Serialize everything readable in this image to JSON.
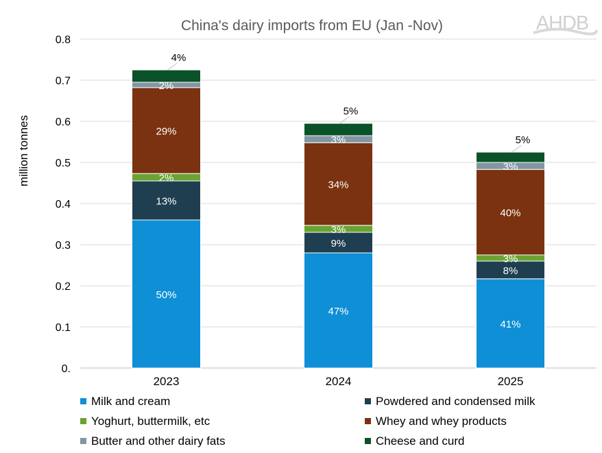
{
  "chart_data": {
    "type": "bar",
    "stacked": true,
    "title": "China's dairy imports from EU (Jan -Nov)",
    "ylabel": "million tonnes",
    "xlabel": "",
    "ylim": [
      0,
      0.8
    ],
    "yticks": [
      "0.",
      "0.1",
      "0.2",
      "0.3",
      "0.4",
      "0.5",
      "0.6",
      "0.7",
      "0.8"
    ],
    "grid": true,
    "legend": "bottom",
    "categories": [
      "2023",
      "2024",
      "2025"
    ],
    "series": [
      {
        "name": "Milk and cream",
        "color": "#0e8fd6",
        "values": [
          0.36,
          0.28,
          0.217
        ],
        "labels": [
          "50%",
          "47%",
          "41%"
        ]
      },
      {
        "name": "Powdered and condensed milk",
        "color": "#1f3f51",
        "values": [
          0.095,
          0.05,
          0.043
        ],
        "labels": [
          "13%",
          "9%",
          "8%"
        ]
      },
      {
        "name": "Yoghurt, buttermilk, etc",
        "color": "#6aa332",
        "values": [
          0.018,
          0.017,
          0.015
        ],
        "labels": [
          "2%",
          "3%",
          "3%"
        ]
      },
      {
        "name": "Whey and whey products",
        "color": "#7a3210",
        "values": [
          0.209,
          0.201,
          0.208
        ],
        "labels": [
          "29%",
          "34%",
          "40%"
        ]
      },
      {
        "name": "Butter and other dairy fats",
        "color": "#8197a3",
        "values": [
          0.013,
          0.017,
          0.017
        ],
        "labels": [
          "2%",
          "3%",
          "3%"
        ]
      },
      {
        "name": "Cheese and curd",
        "color": "#0b5228",
        "values": [
          0.03,
          0.03,
          0.025
        ],
        "labels": [
          "4%",
          "5%",
          "5%"
        ]
      }
    ]
  },
  "logo": "AHDB"
}
